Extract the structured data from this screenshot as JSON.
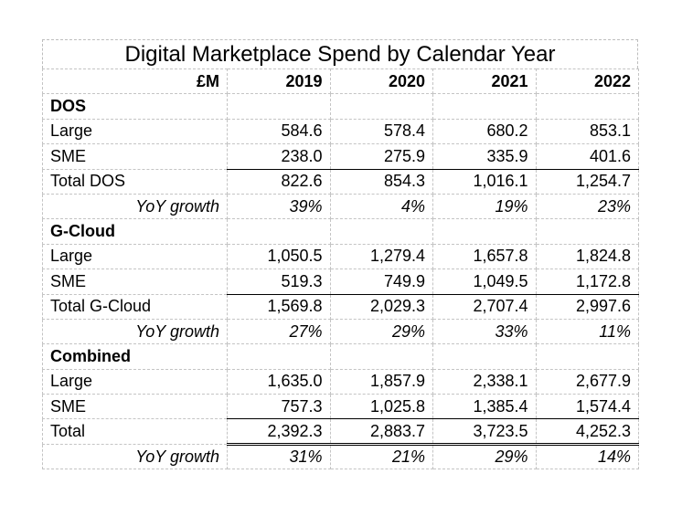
{
  "chart_data": {
    "type": "table",
    "title": "Digital Marketplace Spend by Calendar Year",
    "unit_label": "£M",
    "columns": [
      "2019",
      "2020",
      "2021",
      "2022"
    ],
    "rows": [
      {
        "kind": "section",
        "label": "DOS"
      },
      {
        "kind": "data",
        "label": "Large",
        "values": [
          "584.6",
          "578.4",
          "680.2",
          "853.1"
        ]
      },
      {
        "kind": "data",
        "label": "SME",
        "values": [
          "238.0",
          "275.9",
          "335.9",
          "401.6"
        ]
      },
      {
        "kind": "total",
        "label": "Total DOS",
        "values": [
          "822.6",
          "854.3",
          "1,016.1",
          "1,254.7"
        ]
      },
      {
        "kind": "growth",
        "label": "YoY growth",
        "values": [
          "39%",
          "4%",
          "19%",
          "23%"
        ]
      },
      {
        "kind": "section",
        "label": "G-Cloud"
      },
      {
        "kind": "data",
        "label": "Large",
        "values": [
          "1,050.5",
          "1,279.4",
          "1,657.8",
          "1,824.8"
        ]
      },
      {
        "kind": "data",
        "label": "SME",
        "values": [
          "519.3",
          "749.9",
          "1,049.5",
          "1,172.8"
        ]
      },
      {
        "kind": "total",
        "label": "Total G-Cloud",
        "values": [
          "1,569.8",
          "2,029.3",
          "2,707.4",
          "2,997.6"
        ]
      },
      {
        "kind": "growth",
        "label": "YoY growth",
        "values": [
          "27%",
          "29%",
          "33%",
          "11%"
        ]
      },
      {
        "kind": "section",
        "label": "Combined"
      },
      {
        "kind": "data",
        "label": "Large",
        "values": [
          "1,635.0",
          "1,857.9",
          "2,338.1",
          "2,677.9"
        ]
      },
      {
        "kind": "data",
        "label": "SME",
        "values": [
          "757.3",
          "1,025.8",
          "1,385.4",
          "1,574.4"
        ]
      },
      {
        "kind": "grand",
        "label": "Total",
        "values": [
          "2,392.3",
          "2,883.7",
          "3,723.5",
          "4,252.3"
        ]
      },
      {
        "kind": "growth",
        "label": "YoY growth",
        "values": [
          "31%",
          "21%",
          "29%",
          "14%"
        ]
      }
    ]
  }
}
